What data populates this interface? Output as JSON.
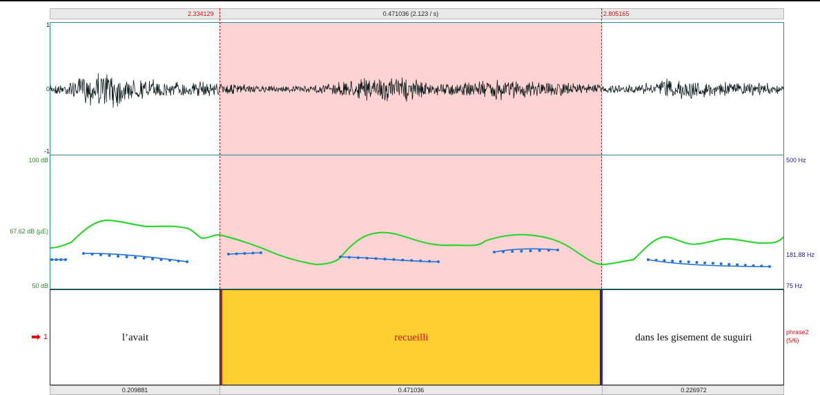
{
  "selection": {
    "start_time": "2.334129",
    "end_time": "2.805165",
    "duration_label": "0.471036 (2.123 / s)"
  },
  "waveform": {
    "y_max": "1",
    "y_zero": "0",
    "y_min": "-1"
  },
  "pitch_panel": {
    "left_top": "100 dB",
    "left_mid": "67.62 dB (µE)",
    "left_bottom": "50 dB",
    "right_top": "500 Hz",
    "right_mid": "181.88 Hz",
    "right_bottom": "75 Hz"
  },
  "annotation": {
    "tier_number": "1",
    "tier_name": "phrase2",
    "tier_count": "(5/6)",
    "segments": [
      {
        "label": "l’avait"
      },
      {
        "label": "recueilli"
      },
      {
        "label": "dans les gisement de suguiri"
      }
    ]
  },
  "durations": [
    "0.209881",
    "0.471036",
    "0.226972"
  ],
  "colors": {
    "selection_bg": "#fdd3d3",
    "selection_marker": "#e01010",
    "segment_selected": "#fdd02f",
    "segment_right_marker": "#1a1af0",
    "panel_border": "#2a8a8a",
    "intensity_curve": "#2dd62d",
    "pitch_curve": "#1e6fd8",
    "left_axis_text": "#2a8a2a",
    "right_axis_text": "#1a1a8c"
  }
}
